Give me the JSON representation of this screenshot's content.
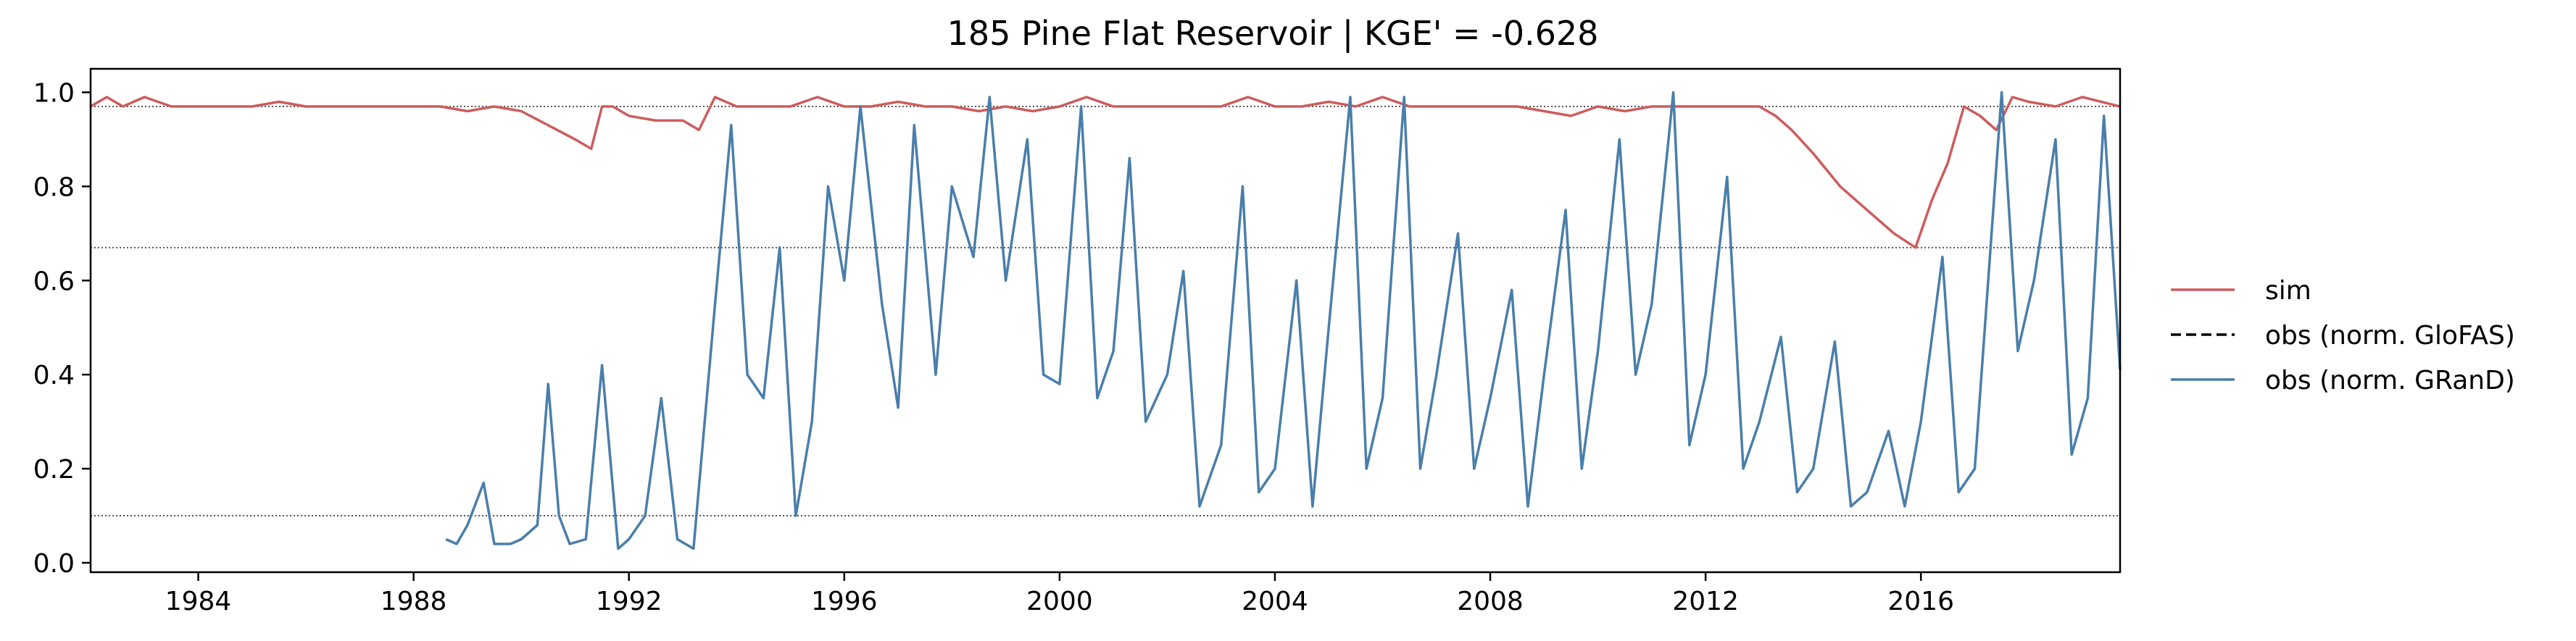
{
  "chart_data": {
    "type": "line",
    "title": "185  Pine Flat Reservoir | KGE' = -0.628",
    "xlabel": "",
    "ylabel": "",
    "xlim": [
      1982.0,
      2019.7
    ],
    "ylim": [
      -0.02,
      1.05
    ],
    "xticks": [
      1984,
      1988,
      1992,
      1996,
      2000,
      2004,
      2008,
      2012,
      2016
    ],
    "yticks": [
      0.0,
      0.2,
      0.4,
      0.6,
      0.8,
      1.0
    ],
    "ytick_labels": [
      "0.0",
      "0.2",
      "0.4",
      "0.6",
      "0.8",
      "1.0"
    ],
    "hlines": [
      0.97,
      0.67,
      0.1
    ],
    "grid": false,
    "legend_position": "outside-right",
    "colors": {
      "sim": "#cd5c5c",
      "obs_glofas": "#000000",
      "obs_grand": "#4a7eaa",
      "hline": "#555555"
    },
    "series": [
      {
        "name": "sim",
        "style": "solid",
        "x": [
          1982.0,
          1982.3,
          1982.6,
          1983.0,
          1983.5,
          1984.0,
          1984.5,
          1985.0,
          1985.5,
          1986.0,
          1986.5,
          1987.0,
          1987.5,
          1988.0,
          1988.5,
          1989.0,
          1989.5,
          1990.0,
          1990.5,
          1991.0,
          1991.3,
          1991.5,
          1991.7,
          1992.0,
          1992.5,
          1993.0,
          1993.3,
          1993.6,
          1994.0,
          1994.5,
          1995.0,
          1995.5,
          1996.0,
          1996.5,
          1997.0,
          1997.5,
          1998.0,
          1998.5,
          1999.0,
          1999.5,
          2000.0,
          2000.5,
          2001.0,
          2001.5,
          2002.0,
          2002.5,
          2003.0,
          2003.5,
          2004.0,
          2004.5,
          2005.0,
          2005.5,
          2006.0,
          2006.5,
          2007.0,
          2007.5,
          2008.0,
          2008.5,
          2009.0,
          2009.5,
          2010.0,
          2010.5,
          2011.0,
          2011.5,
          2012.0,
          2012.5,
          2013.0,
          2013.3,
          2013.6,
          2014.0,
          2014.5,
          2015.0,
          2015.5,
          2015.9,
          2016.2,
          2016.5,
          2016.8,
          2017.1,
          2017.4,
          2017.7,
          2018.0,
          2018.5,
          2019.0,
          2019.7
        ],
        "y": [
          0.97,
          0.99,
          0.97,
          0.99,
          0.97,
          0.97,
          0.97,
          0.97,
          0.98,
          0.97,
          0.97,
          0.97,
          0.97,
          0.97,
          0.97,
          0.96,
          0.97,
          0.96,
          0.93,
          0.9,
          0.88,
          0.97,
          0.97,
          0.95,
          0.94,
          0.94,
          0.92,
          0.99,
          0.97,
          0.97,
          0.97,
          0.99,
          0.97,
          0.97,
          0.98,
          0.97,
          0.97,
          0.96,
          0.97,
          0.96,
          0.97,
          0.99,
          0.97,
          0.97,
          0.97,
          0.97,
          0.97,
          0.99,
          0.97,
          0.97,
          0.98,
          0.97,
          0.99,
          0.97,
          0.97,
          0.97,
          0.97,
          0.97,
          0.96,
          0.95,
          0.97,
          0.96,
          0.97,
          0.97,
          0.97,
          0.97,
          0.97,
          0.95,
          0.92,
          0.87,
          0.8,
          0.75,
          0.7,
          0.67,
          0.77,
          0.85,
          0.97,
          0.95,
          0.92,
          0.99,
          0.98,
          0.97,
          0.99,
          0.97
        ]
      },
      {
        "name": "obs (norm. GloFAS)",
        "style": "dashed",
        "x": [],
        "y": []
      },
      {
        "name": "obs (norm. GRanD)",
        "style": "solid",
        "x": [
          1988.6,
          1988.8,
          1989.0,
          1989.3,
          1989.5,
          1989.8,
          1990.0,
          1990.3,
          1990.5,
          1990.7,
          1990.9,
          1991.2,
          1991.5,
          1991.8,
          1992.0,
          1992.3,
          1992.6,
          1992.9,
          1993.2,
          1993.6,
          1993.9,
          1994.2,
          1994.5,
          1994.8,
          1995.1,
          1995.4,
          1995.7,
          1996.0,
          1996.3,
          1996.7,
          1997.0,
          1997.3,
          1997.7,
          1998.0,
          1998.4,
          1998.7,
          1999.0,
          1999.4,
          1999.7,
          2000.0,
          2000.4,
          2000.7,
          2001.0,
          2001.3,
          2001.6,
          2002.0,
          2002.3,
          2002.6,
          2003.0,
          2003.4,
          2003.7,
          2004.0,
          2004.4,
          2004.7,
          2005.0,
          2005.4,
          2005.7,
          2006.0,
          2006.4,
          2006.7,
          2007.0,
          2007.4,
          2007.7,
          2008.0,
          2008.4,
          2008.7,
          2009.0,
          2009.4,
          2009.7,
          2010.0,
          2010.4,
          2010.7,
          2011.0,
          2011.4,
          2011.7,
          2012.0,
          2012.4,
          2012.7,
          2013.0,
          2013.4,
          2013.7,
          2014.0,
          2014.4,
          2014.7,
          2015.0,
          2015.4,
          2015.7,
          2016.0,
          2016.4,
          2016.7,
          2017.0,
          2017.5,
          2017.8,
          2018.1,
          2018.5,
          2018.8,
          2019.1,
          2019.4,
          2019.7
        ],
        "y": [
          0.05,
          0.04,
          0.08,
          0.17,
          0.04,
          0.04,
          0.05,
          0.08,
          0.38,
          0.1,
          0.04,
          0.05,
          0.42,
          0.03,
          0.05,
          0.1,
          0.35,
          0.05,
          0.03,
          0.55,
          0.93,
          0.4,
          0.35,
          0.67,
          0.1,
          0.3,
          0.8,
          0.6,
          0.97,
          0.55,
          0.33,
          0.93,
          0.4,
          0.8,
          0.65,
          0.99,
          0.6,
          0.9,
          0.4,
          0.38,
          0.97,
          0.35,
          0.45,
          0.86,
          0.3,
          0.4,
          0.62,
          0.12,
          0.25,
          0.8,
          0.15,
          0.2,
          0.6,
          0.12,
          0.5,
          0.99,
          0.2,
          0.35,
          0.99,
          0.2,
          0.4,
          0.7,
          0.2,
          0.35,
          0.58,
          0.12,
          0.4,
          0.75,
          0.2,
          0.45,
          0.9,
          0.4,
          0.55,
          1.0,
          0.25,
          0.4,
          0.82,
          0.2,
          0.3,
          0.48,
          0.15,
          0.2,
          0.47,
          0.12,
          0.15,
          0.28,
          0.12,
          0.3,
          0.65,
          0.15,
          0.2,
          1.0,
          0.45,
          0.6,
          0.9,
          0.23,
          0.35,
          0.95,
          0.41
        ]
      }
    ]
  }
}
